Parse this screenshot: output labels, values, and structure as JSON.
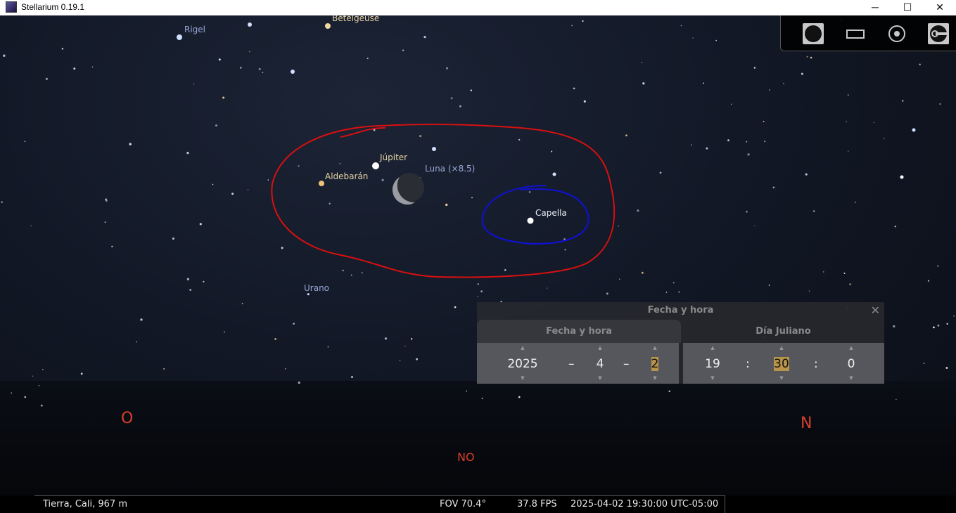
{
  "window": {
    "title": "Stellarium 0.19.1",
    "minimize": "─",
    "maximize": "☐",
    "close": "✕"
  },
  "sky": {
    "labels": {
      "rigel": "Rigel",
      "betelgeuse": "Betelgeuse",
      "jupiter": "Júpiter",
      "moon": "Luna (×8.5)",
      "aldebaran": "Aldebarán",
      "capella": "Capella",
      "uranus": "Urano"
    },
    "cardinals": {
      "west": "O",
      "northwest": "NO",
      "north": "N"
    },
    "annotation_colors": {
      "red": "#d81010",
      "blue": "#1010d8"
    }
  },
  "toolbar": {
    "icons": [
      "planet-icon",
      "window-icon",
      "target-icon",
      "key-icon"
    ]
  },
  "datetime_dialog": {
    "title": "Fecha y hora",
    "close": "✕",
    "tabs": [
      "Fecha y hora",
      "Día Juliano"
    ],
    "date": {
      "year": "2025",
      "month": "4",
      "day": "2",
      "sep": "–"
    },
    "time": {
      "hour": "19",
      "minute": "30",
      "second": "0",
      "sep": ":"
    },
    "arrow_up": "▲",
    "arrow_down": "▼"
  },
  "status": {
    "location": "Tierra, Cali, 967 m",
    "fov": "FOV 70.4°",
    "fps": "37.8 FPS",
    "datetime": "2025-04-02 19:30:00 UTC-05:00"
  }
}
